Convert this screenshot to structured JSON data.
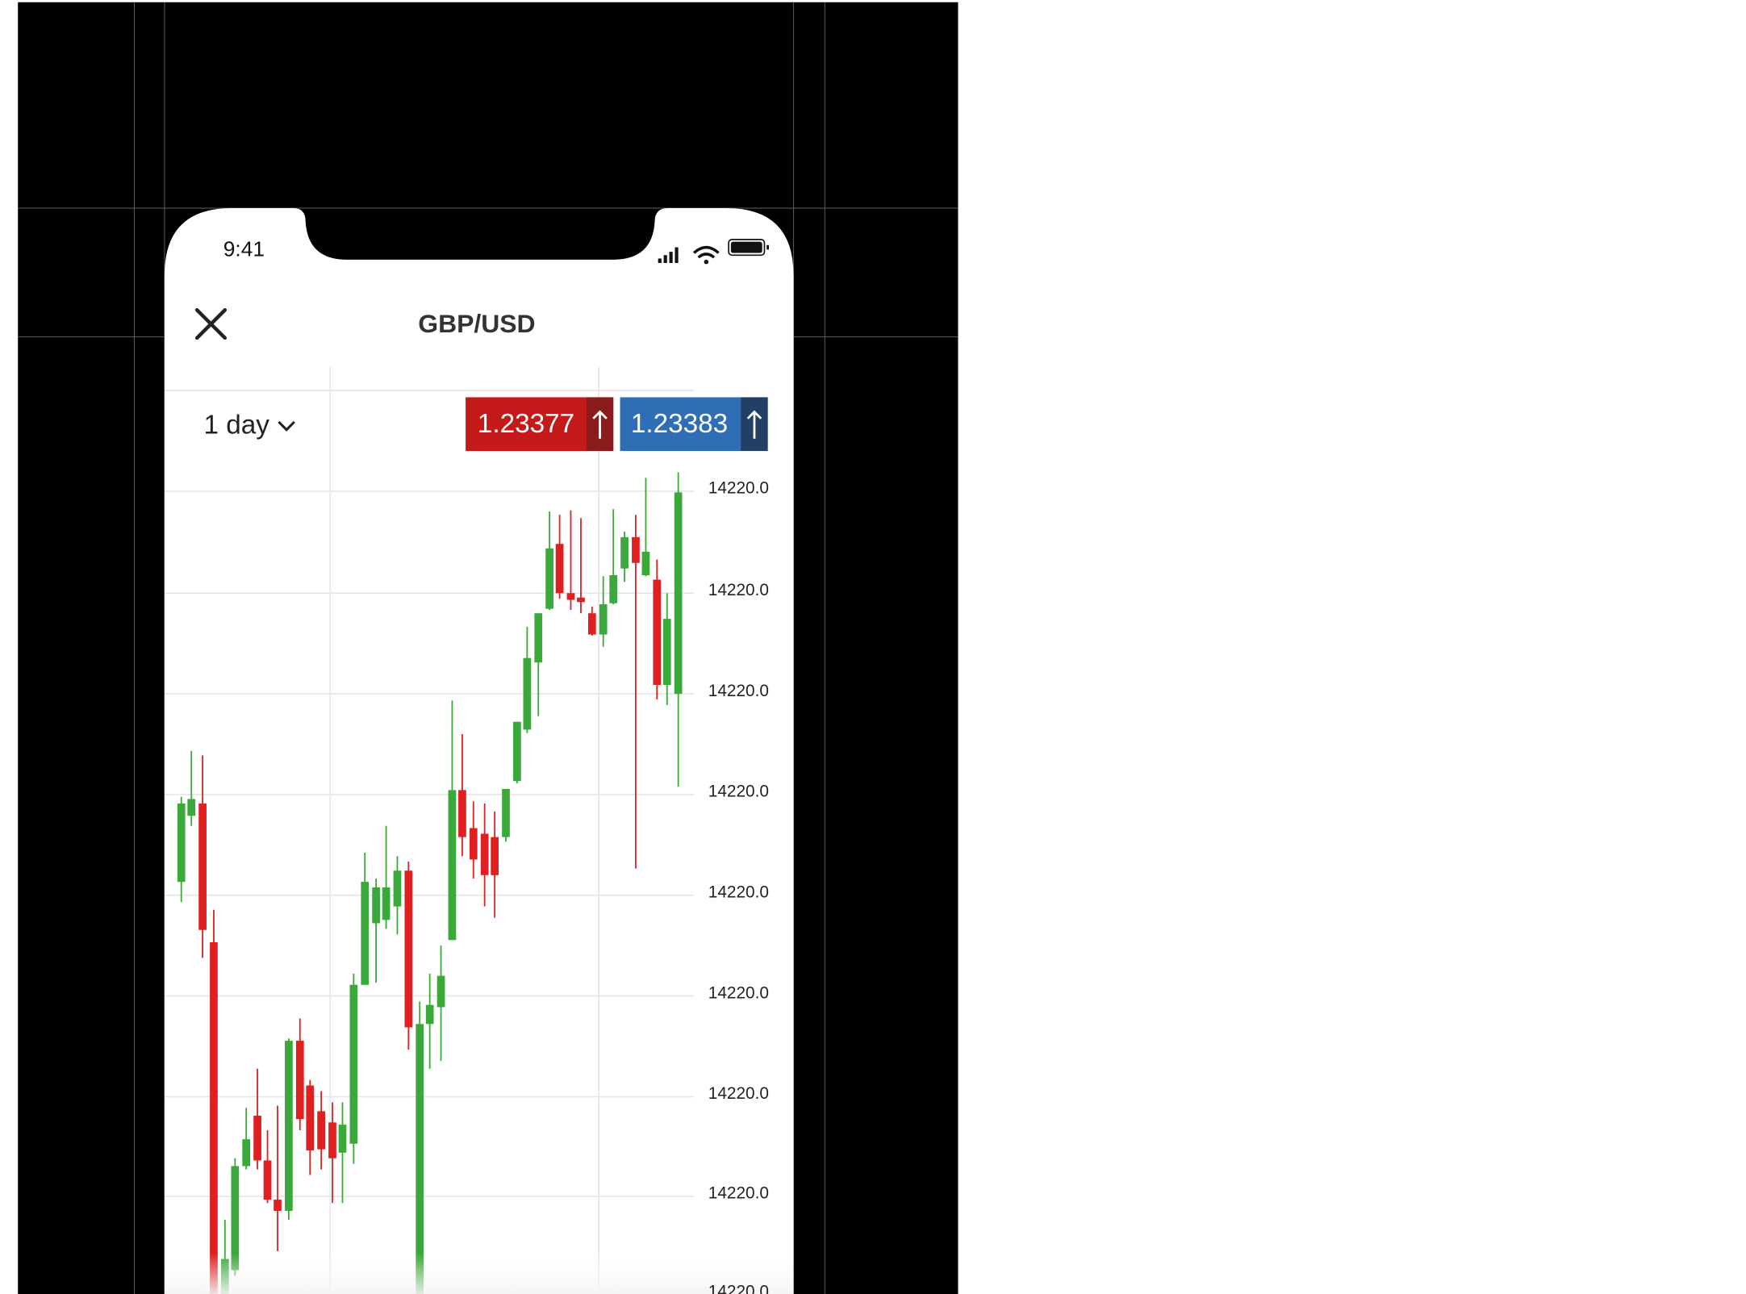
{
  "status": {
    "time": "9:41"
  },
  "header": {
    "title": "GBP/USD"
  },
  "toolbar": {
    "timeframe": "1 day"
  },
  "quotes": {
    "sell": {
      "price": "1.23377"
    },
    "buy": {
      "price": "1.23383"
    }
  },
  "chart": {
    "y_axis_labels": [
      "14220.0",
      "14220.0",
      "14220.0",
      "14220.0",
      "14220.0",
      "14220.0",
      "14220.0",
      "14220.0",
      "14220.0"
    ]
  }
}
